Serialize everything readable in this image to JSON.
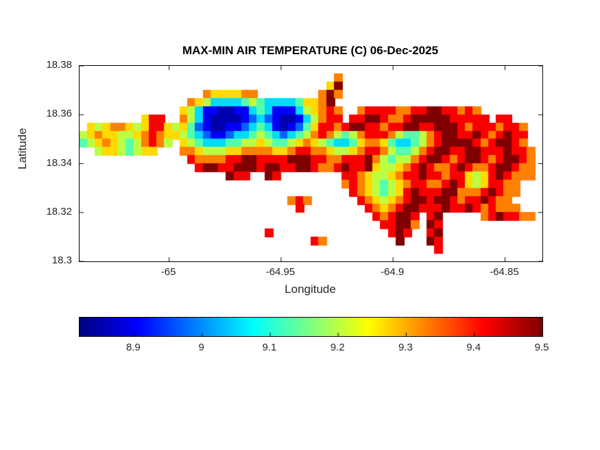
{
  "figure": {
    "background": "#ffffff"
  },
  "chart_data": {
    "type": "heatmap",
    "title": "MAX-MIN AIR TEMPERATURE (C) 06-Dec-2025",
    "xlabel": "Longitude",
    "ylabel": "Latitude",
    "xlim": [
      -65.04,
      -64.8333
    ],
    "ylim": [
      18.3,
      18.38
    ],
    "x_ticks": {
      "values": [
        -65,
        -64.95,
        -64.9,
        -64.85
      ],
      "labels": [
        "-65",
        "-64.95",
        "-64.9",
        "-64.85"
      ]
    },
    "y_ticks": {
      "values": [
        18.38,
        18.36,
        18.34,
        18.32,
        18.3
      ],
      "labels": [
        "18.38",
        "18.36",
        "18.34",
        "18.32",
        "18.3"
      ]
    },
    "grid": "off",
    "legend": "none",
    "colormap": "jet",
    "colorbar": {
      "orientation": "horizontal",
      "min": 8.82,
      "max": 9.5,
      "ticks": [
        8.9,
        9,
        9.1,
        9.2,
        9.3,
        9.4,
        9.5
      ],
      "tick_labels": [
        "8.9",
        "9",
        "9.1",
        "9.2",
        "9.3",
        "9.4",
        "9.5"
      ]
    },
    "units": "C",
    "value_key": {
      ".": null,
      "1": 8.85,
      "2": 8.9,
      "3": 8.97,
      "4": 9.05,
      "5": 9.13,
      "6": 9.2,
      "7": 9.27,
      "8": 9.33,
      "9": 9.42,
      "A": 9.5
    },
    "grid_nrows": 24,
    "grid_ncols": 60,
    "grid_rows": [
      [
        "..........",
        "..........",
        "..........",
        "..........",
        "..........",
        ".........."
      ],
      [
        "..........",
        "..........",
        "..........",
        "...8......",
        "..........",
        ".........."
      ],
      [
        "..........",
        "..........",
        "..........",
        "..7A......",
        "..........",
        ".........."
      ],
      [
        "..........",
        "......8777",
        "788.......",
        ".8A8......",
        "..........",
        ".........."
      ],
      [
        "..........",
        "....876444",
        "4565444457",
        "78A.......",
        "..........",
        ".........."
      ],
      [
        "..........",
        "...7642211",
        "2245422246",
        "7898..8999",
        "98899AA998",
        "98........"
      ],
      [
        "........79",
        "9..8642111",
        "1234321124",
        "6899.99AA9",
        "889AAAAA99",
        "999.99...."
      ],
      [
        ".767887679",
        "9767532112",
        "2345421235",
        "79989AA998",
        "99AA99AAA9",
        "89998998.."
      ],
      [
        "6787766789",
        "8776543223",
        "4456543456",
        "8986568999",
        "8655689AA9",
        "9A989A99.."
      ],
      [
        "5678765689",
        "86.7654445",
        "5667655678",
        "7654457887",
        "5445689AAA",
        "A989AA98.."
      ],
      [
        "..67765677",
        "...8876667",
        "7888877899",
        "8876678998",
        "655689AA99",
        "AA999A998."
      ],
      [
        "..........",
        "....988889",
        "9AA9999AAA",
        "9988999A86",
        "56689AA989",
        "AA989AA98."
      ],
      [
        "..........",
        ".....9AA99",
        "AAA9AA99AA",
        "9889A99A76",
        "6789A9889A",
        "9889AA988."
      ],
      [
        "..........",
        ".........A",
        "99..A9....",
        "....998766",
        "7899A99899",
        "7679A9888."
      ],
      [
        "..........",
        "..........",
        "..........",
        "....898765",
        "67899889A9",
        "7679988..."
      ],
      [
        "..........",
        "..........",
        "..........",
        ".....98765",
        "679A999AA8",
        "889A988..."
      ],
      [
        "..........",
        "..........",
        ".......898",
        "......9876",
        "789AA9AA98",
        "99A988...."
      ],
      [
        "..........",
        "..........",
        "........9.",
        ".......987",
        "89AA999A99",
        "A989888..."
      ],
      [
        "..........",
        "..........",
        "..........",
        "........98",
        "9AA9.9A...",
        "..89A9988."
      ],
      [
        "..........",
        "..........",
        "..........",
        ".........9",
        "9AA8.A9...",
        ".........."
      ],
      [
        "..........",
        "..........",
        "....9.....",
        "..........",
        "9A9..9A...",
        ".........."
      ],
      [
        "..........",
        "..........",
        "..........",
        "98........",
        ".A...A9...",
        ".........."
      ],
      [
        "..........",
        "..........",
        "..........",
        "..........",
        "......9...",
        ".........."
      ],
      [
        "..........",
        "..........",
        "..........",
        "..........",
        "..........",
        ".........."
      ]
    ]
  }
}
